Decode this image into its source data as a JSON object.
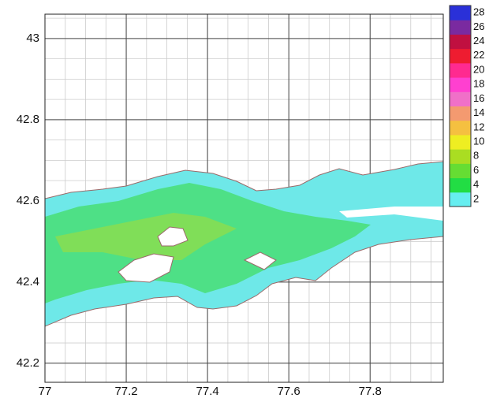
{
  "chart_data": {
    "type": "contour",
    "xlim": [
      77,
      77.98
    ],
    "ylim": [
      42.153,
      43.06
    ],
    "xticks": [
      77,
      77.2,
      77.4,
      77.6,
      77.8
    ],
    "yticks": [
      42.2,
      42.4,
      42.6,
      42.8,
      43
    ],
    "grid": true,
    "colorbar": {
      "levels": [
        2,
        4,
        6,
        8,
        10,
        12,
        14,
        16,
        18,
        20,
        22,
        24,
        26,
        28
      ],
      "colors": [
        "#66eef0",
        "#22dd44",
        "#66dd33",
        "#aadd22",
        "#eeee22",
        "#f5c040",
        "#f49a70",
        "#f070c8",
        "#ff40d0",
        "#ff2a90",
        "#ee1c30",
        "#c01040",
        "#7a2aa0",
        "#2a30d8"
      ]
    }
  }
}
